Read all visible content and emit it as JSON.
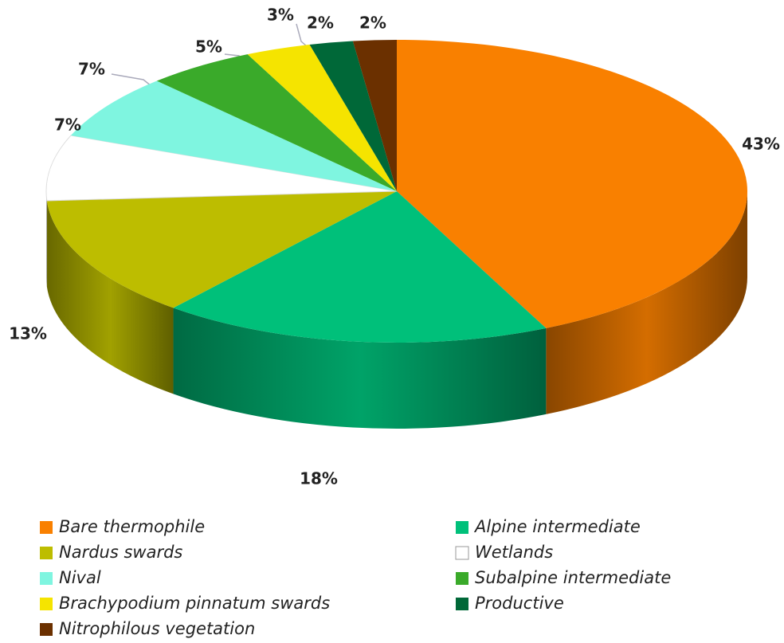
{
  "chart_data": {
    "type": "pie3d",
    "categories": [
      "Bare thermophile",
      "Alpine intermediate",
      "Nardus swards",
      "Wetlands",
      "Nival",
      "Subalpine intermediate",
      "Brachypodium pinnatum swards",
      "Productive",
      "Nitrophilous vegetation"
    ],
    "values": [
      43,
      18,
      13,
      7,
      7,
      5,
      3,
      2,
      2
    ],
    "value_labels": [
      "43%",
      "18%",
      "13%",
      "7%",
      "7%",
      "5%",
      "3%",
      "2%",
      "2%"
    ],
    "colors": [
      "#f98000",
      "#00c07a",
      "#bdbd00",
      "#ffffff",
      "#7ff5e0",
      "#3aaa2a",
      "#f5e400",
      "#006838",
      "#6b3000"
    ],
    "legend": "bottom"
  }
}
